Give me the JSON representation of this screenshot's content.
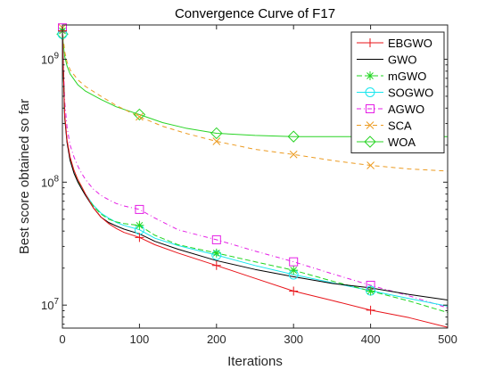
{
  "chart_data": {
    "type": "line",
    "title": "Convergence Curve of F17",
    "xlabel": "Iterations",
    "ylabel": "Best score obtained so far",
    "xlim": [
      0,
      500
    ],
    "ylim": [
      6500000,
      1900000000
    ],
    "yscale": "log",
    "x_ticks": [
      0,
      100,
      200,
      300,
      400,
      500
    ],
    "x_tick_labels": [
      "0",
      "100",
      "200",
      "300",
      "400",
      "500"
    ],
    "y_ticks": [
      10000000,
      100000000,
      1000000000
    ],
    "y_tick_labels": [
      {
        "base": "10",
        "exp": "7"
      },
      {
        "base": "10",
        "exp": "8"
      },
      {
        "base": "10",
        "exp": "9"
      }
    ],
    "grid": false,
    "legend_position": "top-right",
    "series": [
      {
        "name": "EBGWO",
        "color": "#e8141a",
        "marker": "plus",
        "x": [
          0,
          1,
          3,
          6,
          10,
          15,
          20,
          25,
          30,
          40,
          50,
          60,
          70,
          80,
          100,
          120,
          150,
          200,
          250,
          300,
          350,
          400,
          450,
          500
        ],
        "y": [
          1700000000,
          900000000,
          350000000,
          220000000,
          160000000,
          125000000,
          105000000,
          92000000,
          80000000,
          62000000,
          52000000,
          46000000,
          42000000,
          39000000,
          35500000,
          31000000,
          26500000,
          21000000,
          16500000,
          13000000,
          10900000,
          9100000,
          7900000,
          6600000
        ],
        "marker_x": [
          0,
          100,
          200,
          300,
          400
        ],
        "marker_y": [
          1700000000,
          35500000,
          21000000,
          13000000,
          9100000
        ]
      },
      {
        "name": "GWO",
        "color": "#000000",
        "marker": "none",
        "x": [
          0,
          1,
          3,
          6,
          10,
          15,
          20,
          25,
          30,
          40,
          50,
          60,
          70,
          80,
          100,
          120,
          150,
          200,
          250,
          300,
          350,
          400,
          450,
          500
        ],
        "y": [
          1700000000,
          900000000,
          330000000,
          210000000,
          150000000,
          118000000,
          100000000,
          88000000,
          78000000,
          62000000,
          52000000,
          47000000,
          44000000,
          41500000,
          38000000,
          33000000,
          28500000,
          23000000,
          19500000,
          17000000,
          15000000,
          13800000,
          12200000,
          11000000
        ]
      },
      {
        "name": "mGWO",
        "color": "#1fd51f",
        "marker": "asterisk",
        "dash": "6,3",
        "x": [
          0,
          1,
          3,
          6,
          10,
          15,
          20,
          25,
          30,
          40,
          50,
          60,
          70,
          80,
          100,
          120,
          150,
          200,
          250,
          300,
          350,
          400,
          450,
          500
        ],
        "y": [
          1700000000,
          900000000,
          340000000,
          215000000,
          155000000,
          122000000,
          103000000,
          90000000,
          79000000,
          64000000,
          55000000,
          50000000,
          47500000,
          46000000,
          44500000,
          37000000,
          31000000,
          26500000,
          22500000,
          19200000,
          15700000,
          13000000,
          10800000,
          8700000
        ],
        "marker_x": [
          0,
          100,
          200,
          300,
          400
        ],
        "marker_y": [
          1700000000,
          44500000,
          26500000,
          19200000,
          13000000
        ]
      },
      {
        "name": "SOGWO",
        "color": "#17e6ee",
        "marker": "circle",
        "x": [
          0,
          1,
          3,
          6,
          10,
          15,
          20,
          25,
          30,
          40,
          50,
          60,
          70,
          80,
          100,
          120,
          150,
          200,
          250,
          300,
          350,
          400,
          450,
          500
        ],
        "y": [
          1600000000,
          880000000,
          340000000,
          215000000,
          155000000,
          122000000,
          103000000,
          90000000,
          80000000,
          65000000,
          56000000,
          51000000,
          47000000,
          44500000,
          41000000,
          35000000,
          30500000,
          25500000,
          21000000,
          17700000,
          15200000,
          13100000,
          11300000,
          9800000
        ],
        "marker_x": [
          0,
          100,
          200,
          300,
          400
        ],
        "marker_y": [
          1600000000,
          41000000,
          25500000,
          17700000,
          13100000
        ]
      },
      {
        "name": "AGWO",
        "color": "#e51ee5",
        "marker": "square",
        "dash": "5,3,1,3",
        "x": [
          0,
          1,
          3,
          6,
          10,
          15,
          20,
          25,
          30,
          40,
          50,
          60,
          70,
          80,
          100,
          120,
          150,
          200,
          250,
          300,
          350,
          400,
          450,
          500
        ],
        "y": [
          1800000000,
          1000000000,
          450000000,
          280000000,
          200000000,
          160000000,
          135000000,
          118000000,
          105000000,
          88000000,
          78000000,
          72000000,
          67000000,
          64000000,
          60000000,
          51000000,
          41000000,
          34000000,
          27500000,
          22500000,
          18000000,
          14500000,
          11900000,
          9500000
        ],
        "marker_x": [
          0,
          100,
          200,
          300,
          400
        ],
        "marker_y": [
          1800000000,
          60000000,
          34000000,
          22500000,
          14500000
        ]
      },
      {
        "name": "SCA",
        "color": "#ec9b21",
        "marker": "cross",
        "dash": "5,4",
        "x": [
          0,
          1,
          3,
          6,
          10,
          20,
          30,
          50,
          70,
          100,
          130,
          160,
          200,
          250,
          300,
          350,
          400,
          450,
          500
        ],
        "y": [
          1800000000,
          1500000000,
          1150000000,
          950000000,
          820000000,
          680000000,
          600000000,
          500000000,
          420000000,
          340000000,
          285000000,
          250000000,
          215000000,
          185000000,
          168000000,
          150000000,
          137000000,
          128000000,
          123000000
        ],
        "marker_x": [
          0,
          100,
          200,
          300,
          400
        ],
        "marker_y": [
          1800000000,
          340000000,
          215000000,
          168000000,
          137000000
        ]
      },
      {
        "name": "WOA",
        "color": "#29d425",
        "marker": "diamond",
        "x": [
          0,
          1,
          3,
          6,
          10,
          20,
          30,
          50,
          70,
          100,
          130,
          160,
          200,
          250,
          300,
          350,
          400,
          450,
          500
        ],
        "y": [
          1600000000,
          1350000000,
          1050000000,
          880000000,
          760000000,
          620000000,
          550000000,
          470000000,
          410000000,
          355000000,
          305000000,
          275000000,
          250000000,
          240000000,
          235000000,
          235000000,
          235000000,
          235000000,
          235000000
        ],
        "marker_x": [
          0,
          100,
          200,
          300
        ],
        "marker_y": [
          1600000000,
          355000000,
          250000000,
          235000000
        ]
      }
    ]
  }
}
